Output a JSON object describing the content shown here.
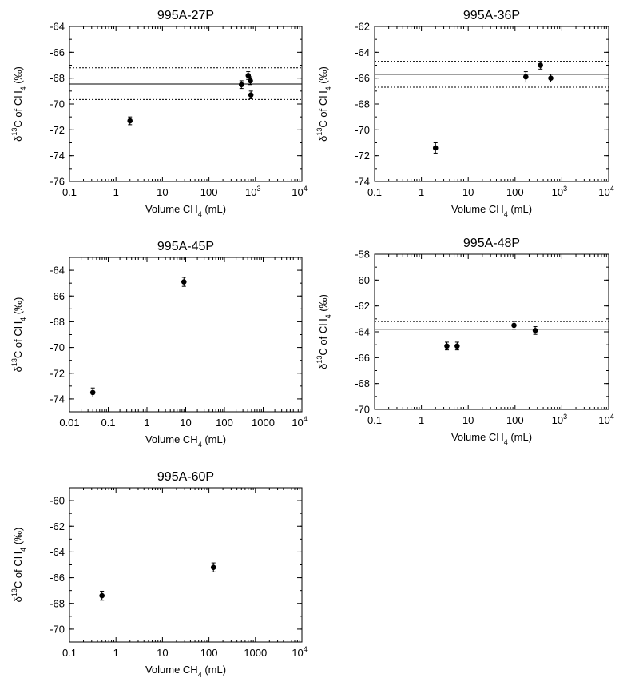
{
  "chart_data": [
    {
      "type": "scatter",
      "title": "995A-27P",
      "xlabel_main": "Volume CH",
      "xlabel_sub": "4",
      "xlabel_tail": " (mL)",
      "ylabel_delta": "δ",
      "ylabel_sup": "13",
      "ylabel_mid": "C of CH",
      "ylabel_sub": "4",
      "ylabel_tail": " (‰)",
      "xscale": "log",
      "xlim": [
        0.1,
        10000
      ],
      "ylim": [
        -76,
        -64
      ],
      "xticks": [
        {
          "v": 0.1,
          "label": "0.1"
        },
        {
          "v": 1,
          "label": "1"
        },
        {
          "v": 10,
          "label": "10"
        },
        {
          "v": 100,
          "label": "100"
        },
        {
          "v": 1000,
          "label": "10",
          "sup": "3"
        },
        {
          "v": 10000,
          "label": "10",
          "sup": "4"
        }
      ],
      "yticks": [
        -64,
        -66,
        -68,
        -70,
        -72,
        -74,
        -76
      ],
      "points": [
        {
          "x": 2,
          "y": -71.3,
          "err": 0.3
        },
        {
          "x": 500,
          "y": -68.5,
          "err": 0.3
        },
        {
          "x": 700,
          "y": -67.8,
          "err": 0.3
        },
        {
          "x": 780,
          "y": -68.2,
          "err": 0.3
        },
        {
          "x": 800,
          "y": -69.3,
          "err": 0.3
        }
      ],
      "ref_lines": [
        {
          "y": -68.45,
          "style": "solid"
        },
        {
          "y": -67.2,
          "style": "dotted"
        },
        {
          "y": -69.65,
          "style": "dotted"
        }
      ]
    },
    {
      "type": "scatter",
      "title": "995A-36P",
      "xlabel_main": "Volume CH",
      "xlabel_sub": "4",
      "xlabel_tail": " (mL)",
      "ylabel_delta": "δ",
      "ylabel_sup": "13",
      "ylabel_mid": "C of CH",
      "ylabel_sub": "4",
      "ylabel_tail": " (‰)",
      "xscale": "log",
      "xlim": [
        0.1,
        10000
      ],
      "ylim": [
        -74,
        -62
      ],
      "xticks": [
        {
          "v": 0.1,
          "label": "0.1"
        },
        {
          "v": 1,
          "label": "1"
        },
        {
          "v": 10,
          "label": "10"
        },
        {
          "v": 100,
          "label": "100"
        },
        {
          "v": 1000,
          "label": "10",
          "sup": "3"
        },
        {
          "v": 10000,
          "label": "10",
          "sup": "4"
        }
      ],
      "yticks": [
        -62,
        -64,
        -66,
        -68,
        -70,
        -72,
        -74
      ],
      "points": [
        {
          "x": 2,
          "y": -71.4,
          "err": 0.4
        },
        {
          "x": 170,
          "y": -65.9,
          "err": 0.4
        },
        {
          "x": 350,
          "y": -65.0,
          "err": 0.3
        },
        {
          "x": 580,
          "y": -66.0,
          "err": 0.3
        }
      ],
      "ref_lines": [
        {
          "y": -65.7,
          "style": "solid"
        },
        {
          "y": -64.7,
          "style": "dotted"
        },
        {
          "y": -66.7,
          "style": "dotted"
        }
      ]
    },
    {
      "type": "scatter",
      "title": "995A-45P",
      "xlabel_main": "Volume CH",
      "xlabel_sub": "4",
      "xlabel_tail": " (mL)",
      "ylabel_delta": "δ",
      "ylabel_sup": "13",
      "ylabel_mid": "C of CH",
      "ylabel_sub": "4",
      "ylabel_tail": " (‰)",
      "xscale": "log",
      "xlim": [
        0.01,
        10000
      ],
      "ylim": [
        -75,
        -63
      ],
      "xticks": [
        {
          "v": 0.01,
          "label": "0.01"
        },
        {
          "v": 0.1,
          "label": "0.1"
        },
        {
          "v": 1,
          "label": "1"
        },
        {
          "v": 10,
          "label": "10"
        },
        {
          "v": 100,
          "label": "100"
        },
        {
          "v": 1000,
          "label": "1000"
        },
        {
          "v": 10000,
          "label": "10",
          "sup": "4"
        }
      ],
      "yticks": [
        -64,
        -66,
        -68,
        -70,
        -72,
        -74
      ],
      "points": [
        {
          "x": 0.04,
          "y": -73.5,
          "err": 0.35
        },
        {
          "x": 9,
          "y": -64.9,
          "err": 0.35
        }
      ],
      "ref_lines": []
    },
    {
      "type": "scatter",
      "title": "995A-48P",
      "xlabel_main": "Volume CH",
      "xlabel_sub": "4",
      "xlabel_tail": " (mL)",
      "ylabel_delta": "δ",
      "ylabel_sup": "13",
      "ylabel_mid": "C of CH",
      "ylabel_sub": "4",
      "ylabel_tail": " (‰)",
      "xscale": "log",
      "xlim": [
        0.1,
        10000
      ],
      "ylim": [
        -70,
        -58
      ],
      "xticks": [
        {
          "v": 0.1,
          "label": "0.1"
        },
        {
          "v": 1,
          "label": "1"
        },
        {
          "v": 10,
          "label": "10"
        },
        {
          "v": 100,
          "label": "100"
        },
        {
          "v": 1000,
          "label": "10",
          "sup": "3"
        },
        {
          "v": 10000,
          "label": "10",
          "sup": "4"
        }
      ],
      "yticks": [
        -58,
        -60,
        -62,
        -64,
        -66,
        -68,
        -70
      ],
      "points": [
        {
          "x": 3.5,
          "y": -65.1,
          "err": 0.3
        },
        {
          "x": 5.8,
          "y": -65.1,
          "err": 0.3
        },
        {
          "x": 95,
          "y": -63.5,
          "err": 0.3
        },
        {
          "x": 270,
          "y": -63.9,
          "err": 0.3
        }
      ],
      "ref_lines": [
        {
          "y": -63.8,
          "style": "solid"
        },
        {
          "y": -63.2,
          "style": "dotted"
        },
        {
          "y": -64.4,
          "style": "dotted"
        }
      ]
    },
    {
      "type": "scatter",
      "title": "995A-60P",
      "xlabel_main": "Volume CH",
      "xlabel_sub": "4",
      "xlabel_tail": " (mL)",
      "ylabel_delta": "δ",
      "ylabel_sup": "13",
      "ylabel_mid": "C of CH",
      "ylabel_sub": "4",
      "ylabel_tail": " (‰)",
      "xscale": "log",
      "xlim": [
        0.1,
        10000
      ],
      "ylim": [
        -71,
        -59
      ],
      "xticks": [
        {
          "v": 0.1,
          "label": "0.1"
        },
        {
          "v": 1,
          "label": "1"
        },
        {
          "v": 10,
          "label": "10"
        },
        {
          "v": 100,
          "label": "100"
        },
        {
          "v": 1000,
          "label": "1000"
        },
        {
          "v": 10000,
          "label": "10",
          "sup": "4"
        }
      ],
      "yticks": [
        -60,
        -62,
        -64,
        -66,
        -68,
        -70
      ],
      "points": [
        {
          "x": 0.5,
          "y": -67.4,
          "err": 0.35
        },
        {
          "x": 125,
          "y": -65.2,
          "err": 0.35
        }
      ],
      "ref_lines": []
    }
  ]
}
